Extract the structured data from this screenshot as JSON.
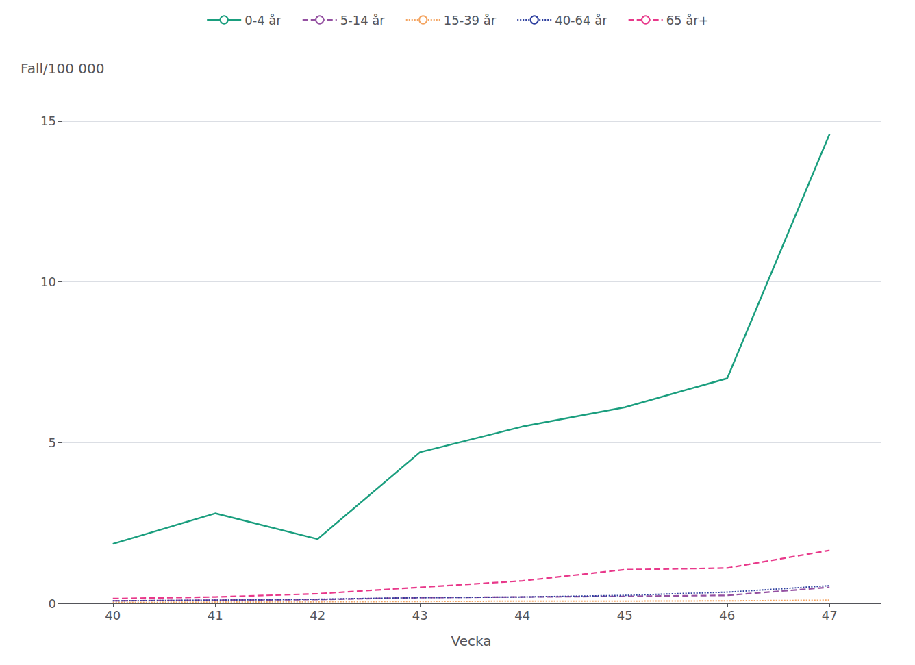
{
  "chart_data": {
    "type": "line",
    "x_label": "Vecka",
    "y_label": "Fall/100 000",
    "x": [
      40,
      41,
      42,
      43,
      44,
      45,
      46,
      47
    ],
    "series": [
      {
        "name": "0-4 år",
        "color": "#1a9e7e",
        "line_style": "solid",
        "values": [
          1.85,
          2.8,
          2.0,
          4.7,
          5.5,
          6.1,
          7.0,
          14.6
        ]
      },
      {
        "name": "5-14 år",
        "color": "#9450a1",
        "line_style": "dashed",
        "values": [
          0.08,
          0.1,
          0.12,
          0.18,
          0.2,
          0.22,
          0.25,
          0.5
        ]
      },
      {
        "name": "15-39 år",
        "color": "#f4a460",
        "line_style": "dotted",
        "values": [
          0.03,
          0.04,
          0.05,
          0.06,
          0.07,
          0.07,
          0.08,
          0.1
        ]
      },
      {
        "name": "40-64 år",
        "color": "#2c3e9e",
        "line_style": "dotted",
        "values": [
          0.08,
          0.1,
          0.13,
          0.18,
          0.2,
          0.25,
          0.35,
          0.55
        ]
      },
      {
        "name": "65 år+",
        "color": "#e8388a",
        "line_style": "dashed",
        "values": [
          0.15,
          0.2,
          0.3,
          0.5,
          0.7,
          1.05,
          1.1,
          1.65
        ]
      }
    ],
    "xlim": [
      39.5,
      47.5
    ],
    "xticks": [
      40,
      41,
      42,
      43,
      44,
      45,
      46,
      47
    ],
    "ylim": [
      0,
      16
    ],
    "yticks": [
      0,
      5,
      10,
      15
    ],
    "grid": true,
    "legend": "top"
  }
}
